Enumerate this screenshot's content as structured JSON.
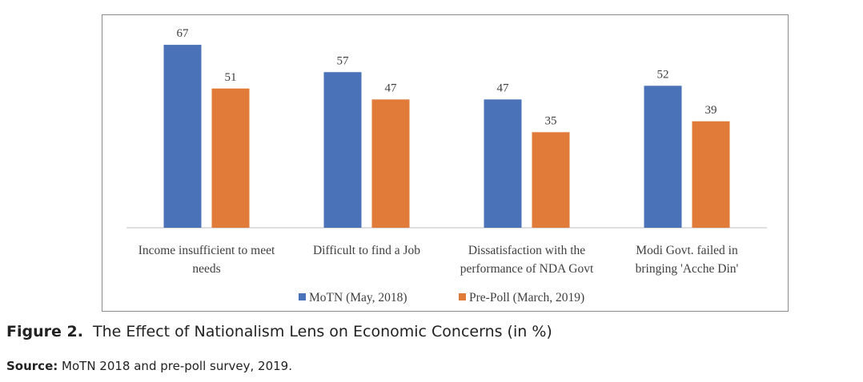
{
  "chart_data": {
    "type": "bar",
    "categories": [
      [
        "Income insufficient to meet",
        "needs"
      ],
      [
        "Difficult to find a Job"
      ],
      [
        "Dissatisfaction with the",
        "performance of NDA Govt"
      ],
      [
        "Modi Govt. failed in",
        "bringing 'Acche Din'"
      ]
    ],
    "series": [
      {
        "name": "MoTN (May, 2018)",
        "values": [
          67,
          57,
          47,
          52
        ],
        "color": "#4a72b8"
      },
      {
        "name": "Pre-Poll (March, 2019)",
        "values": [
          51,
          47,
          35,
          39
        ],
        "color": "#e07b39"
      }
    ],
    "ylim": [
      0,
      72
    ],
    "legend_position": "bottom-center",
    "grid": false
  },
  "figure": {
    "label": "Figure 2.",
    "title": "The Effect of Nationalism Lens on Economic Concerns (in %)"
  },
  "source": {
    "label": "Source:",
    "text": "MoTN 2018 and pre-poll survey, 2019."
  }
}
